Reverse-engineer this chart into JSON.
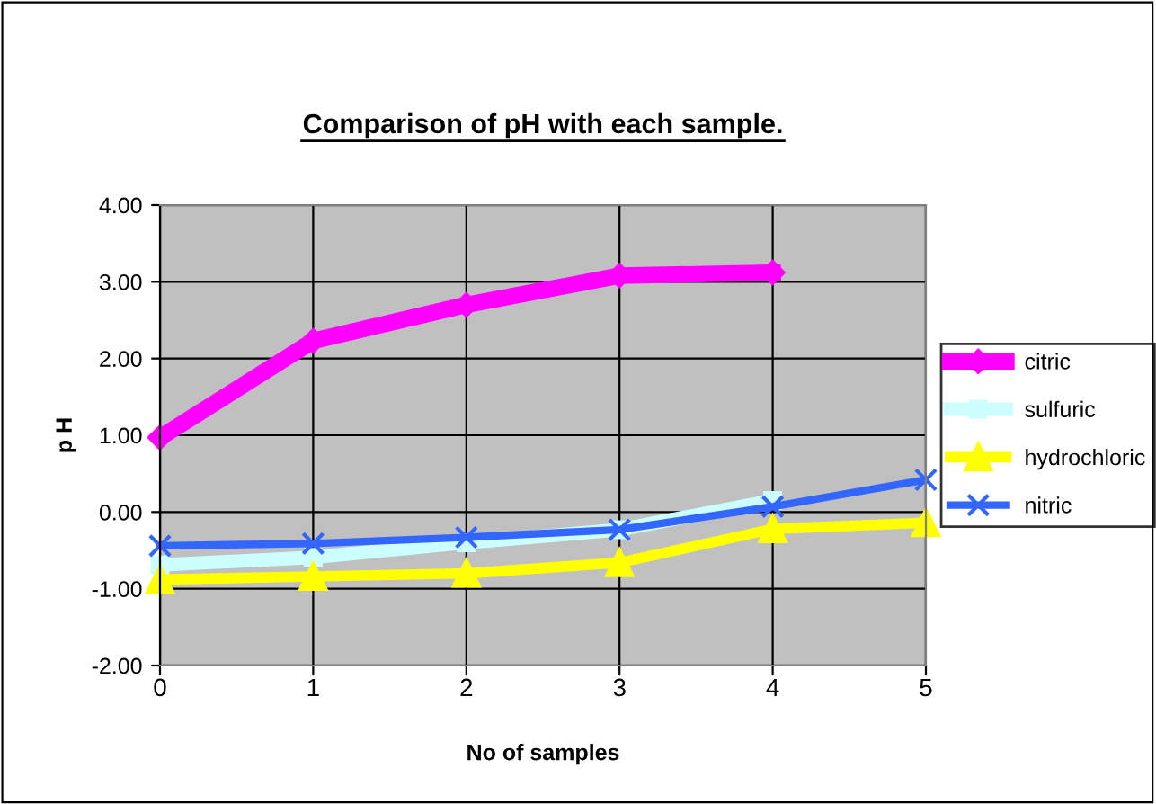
{
  "chart_data": {
    "type": "line",
    "title": "Comparison of pH with each sample.",
    "xlabel": "No of samples",
    "ylabel": "p H",
    "categories": [
      "0",
      "1",
      "2",
      "3",
      "4",
      "5"
    ],
    "series": [
      {
        "name": "citric",
        "color": "#ff00ff",
        "marker": "diamond",
        "values": [
          0.97,
          2.23,
          2.7,
          3.08,
          3.12,
          null
        ]
      },
      {
        "name": "sulfuric",
        "color": "#ccffff",
        "marker": "square",
        "values": [
          -0.69,
          -0.59,
          -0.4,
          -0.23,
          0.15,
          null
        ]
      },
      {
        "name": "hydrochloric",
        "color": "#ffff00",
        "marker": "triangle",
        "values": [
          -0.88,
          -0.84,
          -0.8,
          -0.66,
          -0.22,
          -0.14
        ]
      },
      {
        "name": "nitric",
        "color": "#3366ff",
        "marker": "cross",
        "values": [
          -0.44,
          -0.41,
          -0.33,
          -0.23,
          0.07,
          0.42
        ]
      }
    ],
    "ylim": [
      -2,
      4
    ],
    "yticks": [
      {
        "value": -2,
        "label": "-2.00"
      },
      {
        "value": -1,
        "label": "-1.00"
      },
      {
        "value": 0,
        "label": "0.00"
      },
      {
        "value": 1,
        "label": "1.00"
      },
      {
        "value": 2,
        "label": "2.00"
      },
      {
        "value": 3,
        "label": "3.00"
      },
      {
        "value": 4,
        "label": "4.00"
      }
    ],
    "grid": true,
    "legend": "right"
  }
}
